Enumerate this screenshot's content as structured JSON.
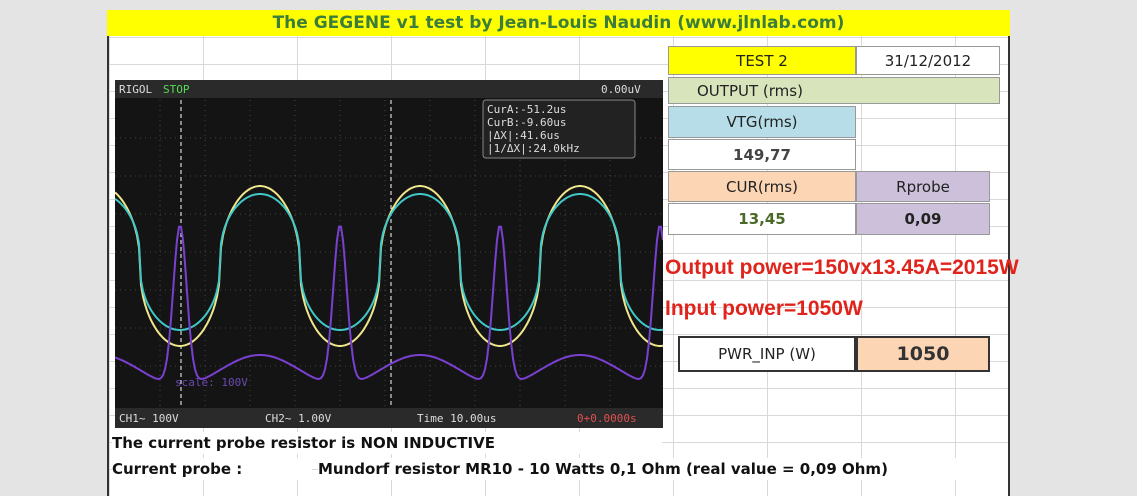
{
  "header": {
    "title": "The GEGENE v1 test by Jean-Louis Naudin (www.jlnlab.com)"
  },
  "table": {
    "test": "TEST 2",
    "date": "31/12/2012",
    "output": "OUTPUT (rms)",
    "vtg_label": "VTG(rms)",
    "vtg_value": "149,77",
    "cur_label": "CUR(rms)",
    "rprobe_label": "Rprobe",
    "cur_value": "13,45",
    "rprobe_value": "0,09",
    "pwr_label": "PWR_INP (W)",
    "pwr_value": "1050"
  },
  "notes": {
    "output_power": "Output power=150vx13.45A=2015W",
    "input_power": "Input power=1050W"
  },
  "footer": {
    "note": "The current probe resistor is NON INDUCTIVE",
    "probe_label": "Current probe :",
    "probe_desc": "Mundorf resistor MR10 - 10 Watts 0,1 Ohm (real value = 0,09 Ohm)"
  },
  "scope": {
    "brand": "RIGOL",
    "state": "STOP",
    "trigger": "0.00uV",
    "cursors": [
      "CurA:-51.2us",
      "CurB:-9.60us",
      "|ΔX|:41.6us",
      "|1/ΔX|:24.0kHz"
    ],
    "ch1": "CH1~  100V",
    "ch2": "CH2~  1.00V",
    "time": "Time 10.00us",
    "offset": "0+0.0000s",
    "scale": "scale: 100V"
  }
}
